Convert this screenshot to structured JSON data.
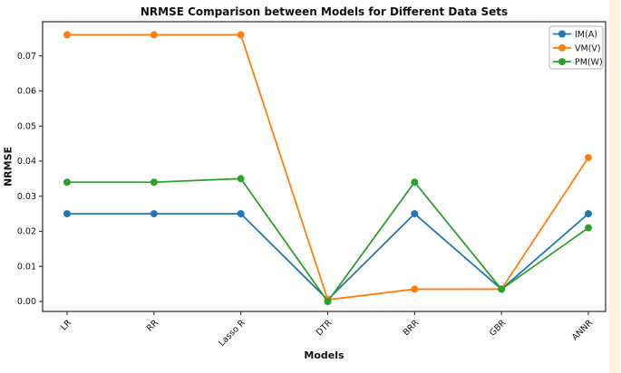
{
  "figure": {
    "background_color": "#ffffff",
    "edge_strip_color": "#fbf5e1",
    "spine_color": "#3c3c3c",
    "text_color": "#111111",
    "legend_border_color": "#b0b0b0",
    "legend_background_color": "#ffffff"
  },
  "chart_data": {
    "type": "line",
    "title": "NRMSE Comparison between Models for Different Data Sets",
    "xlabel": "Models",
    "ylabel": "NRMSE",
    "categories": [
      "LR",
      "RR",
      "Lasso R",
      "DTR",
      "BRR",
      "GBR",
      "ANNR"
    ],
    "series": [
      {
        "name": "IM(A)",
        "color": "#1f77b4",
        "marker": "circle",
        "values": [
          0.025,
          0.025,
          0.025,
          0.0005,
          0.025,
          0.0035,
          0.025
        ]
      },
      {
        "name": "VM(V)",
        "color": "#ff7f0e",
        "marker": "circle",
        "values": [
          0.076,
          0.076,
          0.076,
          0.0005,
          0.0035,
          0.0035,
          0.041
        ]
      },
      {
        "name": "PM(W)",
        "color": "#2ca02c",
        "marker": "circle",
        "values": [
          0.034,
          0.034,
          0.035,
          0.0,
          0.034,
          0.0035,
          0.021
        ]
      }
    ],
    "yticks": [
      "0.00",
      "0.01",
      "0.02",
      "0.03",
      "0.04",
      "0.05",
      "0.06",
      "0.07"
    ],
    "ytick_values": [
      0,
      0.01,
      0.02,
      0.03,
      0.04,
      0.05,
      0.06,
      0.07
    ],
    "ylim": [
      -0.004,
      0.0806
    ],
    "xtick_rotation": 45,
    "grid": false,
    "legend_position": "upper right",
    "legend_entries": [
      "IM(A)",
      "VM(V)",
      "PM(W)"
    ]
  }
}
